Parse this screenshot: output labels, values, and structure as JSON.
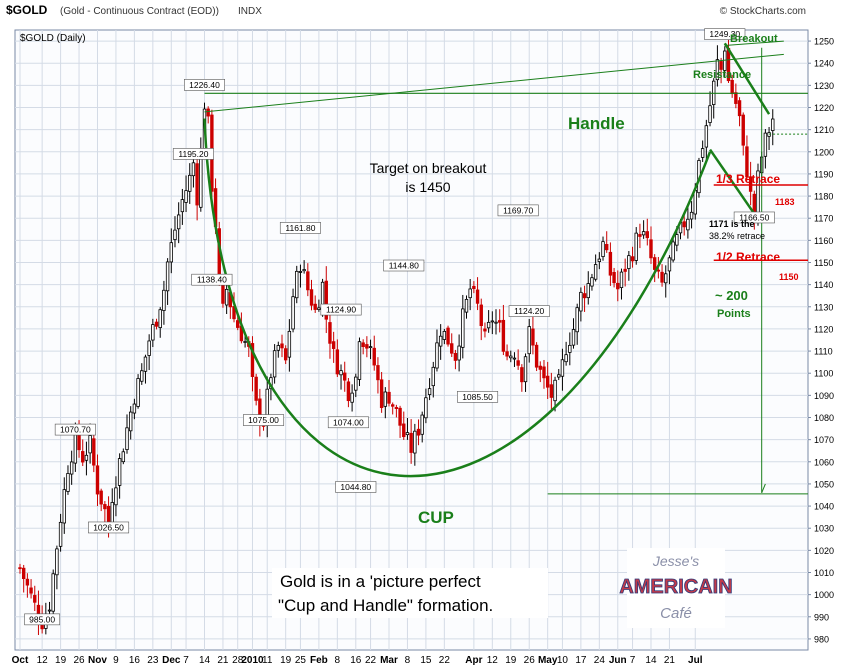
{
  "header": {
    "symbol": "$GOLD",
    "description": "(Gold - Continuous Contract (EOD))",
    "exchange": "INDX",
    "credit": "© StockCharts.com",
    "inner_label": "$GOLD (Daily)"
  },
  "chart_data": {
    "type": "candlestick",
    "title": "$GOLD (Gold - Continuous Contract (EOD)) INDX",
    "ylim": [
      975,
      1255
    ],
    "y_ticks": [
      980,
      990,
      1000,
      1010,
      1020,
      1030,
      1040,
      1050,
      1060,
      1070,
      1080,
      1090,
      1100,
      1110,
      1120,
      1130,
      1140,
      1150,
      1160,
      1170,
      1180,
      1190,
      1200,
      1210,
      1220,
      1230,
      1240,
      1250
    ],
    "x_labels": [
      {
        "label": "Oct",
        "bar": 0
      },
      {
        "label": "12",
        "bar": 6
      },
      {
        "label": "19",
        "bar": 11
      },
      {
        "label": "26",
        "bar": 16
      },
      {
        "label": "Nov",
        "bar": 21
      },
      {
        "label": "9",
        "bar": 26
      },
      {
        "label": "16",
        "bar": 31
      },
      {
        "label": "23",
        "bar": 36
      },
      {
        "label": "Dec",
        "bar": 41
      },
      {
        "label": "7",
        "bar": 45
      },
      {
        "label": "14",
        "bar": 50
      },
      {
        "label": "21",
        "bar": 55
      },
      {
        "label": "28",
        "bar": 59
      },
      {
        "label": "2010",
        "bar": 63
      },
      {
        "label": "11",
        "bar": 67
      },
      {
        "label": "19",
        "bar": 72
      },
      {
        "label": "25",
        "bar": 76
      },
      {
        "label": "Feb",
        "bar": 81
      },
      {
        "label": "8",
        "bar": 86
      },
      {
        "label": "16",
        "bar": 91
      },
      {
        "label": "22",
        "bar": 95
      },
      {
        "label": "Mar",
        "bar": 100
      },
      {
        "label": "8",
        "bar": 105
      },
      {
        "label": "15",
        "bar": 110
      },
      {
        "label": "22",
        "bar": 115
      },
      {
        "label": "Apr",
        "bar": 123
      },
      {
        "label": "12",
        "bar": 128
      },
      {
        "label": "19",
        "bar": 133
      },
      {
        "label": "26",
        "bar": 138
      },
      {
        "label": "May",
        "bar": 143
      },
      {
        "label": "10",
        "bar": 147
      },
      {
        "label": "17",
        "bar": 152
      },
      {
        "label": "24",
        "bar": 157
      },
      {
        "label": "Jun",
        "bar": 162
      },
      {
        "label": "7",
        "bar": 166
      },
      {
        "label": "14",
        "bar": 171
      },
      {
        "label": "21",
        "bar": 176
      },
      {
        "label": "Jul",
        "bar": 183
      }
    ],
    "price_path": [
      [
        0,
        1012
      ],
      [
        4,
        995
      ],
      [
        6,
        988
      ],
      [
        8,
        996
      ],
      [
        11,
        1035
      ],
      [
        13,
        1058
      ],
      [
        15,
        1070
      ],
      [
        17,
        1062
      ],
      [
        19,
        1068
      ],
      [
        21,
        1048
      ],
      [
        23,
        1038
      ],
      [
        24,
        1030
      ],
      [
        25,
        1045
      ],
      [
        27,
        1060
      ],
      [
        29,
        1075
      ],
      [
        31,
        1090
      ],
      [
        33,
        1100
      ],
      [
        35,
        1115
      ],
      [
        37,
        1125
      ],
      [
        39,
        1138
      ],
      [
        40,
        1150
      ],
      [
        42,
        1165
      ],
      [
        44,
        1178
      ],
      [
        46,
        1188
      ],
      [
        47,
        1195
      ],
      [
        48,
        1180
      ],
      [
        49,
        1200
      ],
      [
        50,
        1222
      ],
      [
        51,
        1212
      ],
      [
        52,
        1185
      ],
      [
        53,
        1168
      ],
      [
        54,
        1140
      ],
      [
        55,
        1128
      ],
      [
        56,
        1138
      ],
      [
        58,
        1125
      ],
      [
        60,
        1118
      ],
      [
        62,
        1110
      ],
      [
        63,
        1095
      ],
      [
        64,
        1085
      ],
      [
        66,
        1078
      ],
      [
        68,
        1100
      ],
      [
        70,
        1112
      ],
      [
        72,
        1105
      ],
      [
        74,
        1135
      ],
      [
        76,
        1150
      ],
      [
        78,
        1138
      ],
      [
        80,
        1128
      ],
      [
        82,
        1140
      ],
      [
        83,
        1125
      ],
      [
        85,
        1108
      ],
      [
        87,
        1100
      ],
      [
        89,
        1092
      ],
      [
        91,
        1098
      ],
      [
        92,
        1118
      ],
      [
        94,
        1113
      ],
      [
        96,
        1104
      ],
      [
        98,
        1088
      ],
      [
        100,
        1090
      ],
      [
        102,
        1082
      ],
      [
        104,
        1072
      ],
      [
        106,
        1066
      ],
      [
        108,
        1075
      ],
      [
        110,
        1090
      ],
      [
        112,
        1105
      ],
      [
        114,
        1120
      ],
      [
        116,
        1115
      ],
      [
        118,
        1108
      ],
      [
        120,
        1125
      ],
      [
        122,
        1138
      ],
      [
        124,
        1130
      ],
      [
        126,
        1115
      ],
      [
        128,
        1125
      ],
      [
        130,
        1120
      ],
      [
        132,
        1108
      ],
      [
        134,
        1110
      ],
      [
        136,
        1100
      ],
      [
        138,
        1118
      ],
      [
        140,
        1105
      ],
      [
        142,
        1096
      ],
      [
        144,
        1090
      ],
      [
        146,
        1095
      ],
      [
        148,
        1112
      ],
      [
        150,
        1120
      ],
      [
        152,
        1135
      ],
      [
        154,
        1140
      ],
      [
        156,
        1150
      ],
      [
        158,
        1158
      ],
      [
        160,
        1145
      ],
      [
        162,
        1138
      ],
      [
        164,
        1148
      ],
      [
        166,
        1155
      ],
      [
        168,
        1165
      ],
      [
        170,
        1158
      ],
      [
        172,
        1145
      ],
      [
        174,
        1140
      ],
      [
        176,
        1150
      ],
      [
        178,
        1160
      ],
      [
        180,
        1168
      ],
      [
        182,
        1175
      ],
      [
        184,
        1195
      ],
      [
        186,
        1212
      ],
      [
        188,
        1230
      ],
      [
        189,
        1240
      ],
      [
        190,
        1237
      ],
      [
        191,
        1248
      ],
      [
        192,
        1232
      ],
      [
        194,
        1222
      ],
      [
        195,
        1215
      ],
      [
        196,
        1200
      ],
      [
        197,
        1192
      ],
      [
        198,
        1180
      ],
      [
        199,
        1172
      ],
      [
        200,
        1188
      ],
      [
        201,
        1198
      ],
      [
        202,
        1205
      ],
      [
        203,
        1210
      ],
      [
        204,
        1215
      ]
    ],
    "price_labels": [
      {
        "value": "1226.40",
        "bar": 50,
        "y": 1226.4
      },
      {
        "value": "1195.20",
        "bar": 47,
        "y": 1195.2
      },
      {
        "value": "1138.40",
        "bar": 52,
        "y": 1138.4
      },
      {
        "value": "1161.80",
        "bar": 76,
        "y": 1161.8
      },
      {
        "value": "1144.80",
        "bar": 104,
        "y": 1144.8
      },
      {
        "value": "1124.90",
        "bar": 87,
        "y": 1124.9
      },
      {
        "value": "1075.00",
        "bar": 66,
        "y": 1075.0
      },
      {
        "value": "1074.00",
        "bar": 89,
        "y": 1074.0
      },
      {
        "value": "1070.70",
        "bar": 15,
        "y": 1070.7
      },
      {
        "value": "1026.50",
        "bar": 24,
        "y": 1026.5
      },
      {
        "value": "985.00",
        "bar": 6,
        "y": 985.0
      },
      {
        "value": "1044.80",
        "bar": 91,
        "y": 1044.8
      },
      {
        "value": "1085.50",
        "bar": 124,
        "y": 1085.5
      },
      {
        "value": "1124.20",
        "bar": 138,
        "y": 1124.2
      },
      {
        "value": "1169.70",
        "bar": 135,
        "y": 1169.7
      },
      {
        "value": "1249.30",
        "bar": 191,
        "y": 1249.3
      },
      {
        "value": "1166.50",
        "bar": 199,
        "y": 1166.5
      }
    ],
    "annotations": {
      "breakout": "Breakout",
      "resistance": "Resistance",
      "handle": "Handle",
      "cup": "CUP",
      "target_line1": "Target on breakout",
      "target_line2": "is 1450",
      "retrace_third": "1/3 Retrace",
      "retrace_third_value": "1183",
      "retrace_half": "1/2 Retrace",
      "retrace_half_value": "1150",
      "retrace_note_line1": "1171 is the",
      "retrace_note_line2": "38.2% retrace",
      "points_line1": "~ 200",
      "points_line2": "Points",
      "caption_line1": "Gold is in a 'picture perfect",
      "caption_line2": "\"Cup and Handle\" formation."
    },
    "logo": {
      "line1": "Jesse's",
      "line2": "AMERICAIN",
      "line3": "Café"
    },
    "colors": {
      "up_candle": "#000000",
      "down_candle": "#cc0000",
      "pattern_green": "#1a7f1a",
      "retrace_red": "#e00000",
      "grid": "#d4dbe6",
      "plot_bg": "#fbfcfe"
    }
  }
}
